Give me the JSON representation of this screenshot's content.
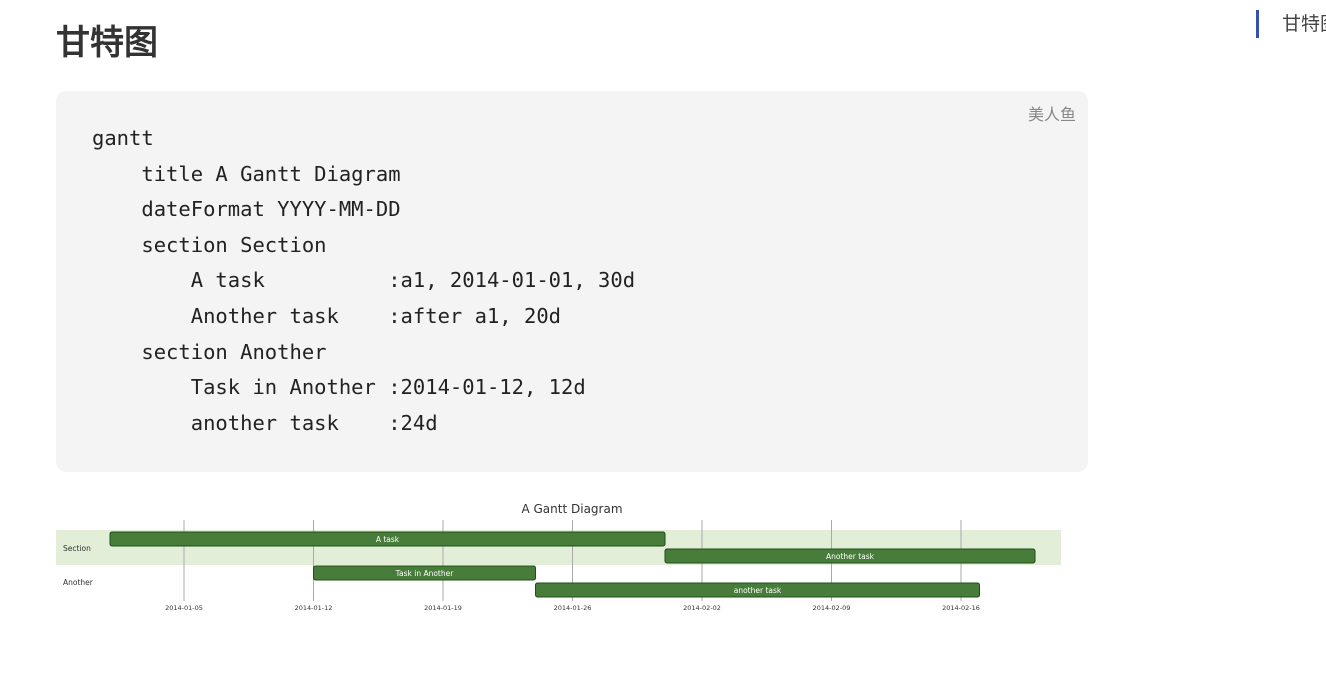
{
  "page": {
    "title": "甘特图"
  },
  "toc": {
    "items": [
      {
        "label": "甘特图"
      }
    ]
  },
  "code_block": {
    "language": "美人鱼",
    "lines": [
      "gantt",
      "    title A Gantt Diagram",
      "    dateFormat YYYY-MM-DD",
      "    section Section",
      "        A task          :a1, 2014-01-01, 30d",
      "        Another task    :after a1, 20d",
      "    section Another",
      "        Task in Another :2014-01-12, 12d",
      "        another task    :24d"
    ]
  },
  "chart_data": {
    "type": "gantt",
    "title": "A Gantt Diagram",
    "x_axis": {
      "start": "2013-12-31",
      "end": "2014-03-04",
      "ticks": [
        "2014-01-05",
        "2014-01-12",
        "2014-01-19",
        "2014-01-26",
        "2014-02-02",
        "2014-02-09",
        "2014-02-16"
      ]
    },
    "sections": [
      {
        "name": "Section",
        "highlight": true,
        "tasks": [
          {
            "name": "A task",
            "start": "2014-01-01",
            "end": "2014-01-31"
          },
          {
            "name": "Another task",
            "start": "2014-01-31",
            "end": "2014-02-20"
          }
        ]
      },
      {
        "name": "Another",
        "highlight": false,
        "tasks": [
          {
            "name": "Task in Another",
            "start": "2014-01-12",
            "end": "2014-01-24"
          },
          {
            "name": "another task",
            "start": "2014-01-24",
            "end": "2014-02-17"
          }
        ]
      }
    ],
    "colors": {
      "bar_fill": "#487c3a",
      "bar_stroke": "#1e4f14",
      "section_band": "#e2eed8",
      "grid": "#aaaaaa",
      "text": "#333333"
    }
  }
}
